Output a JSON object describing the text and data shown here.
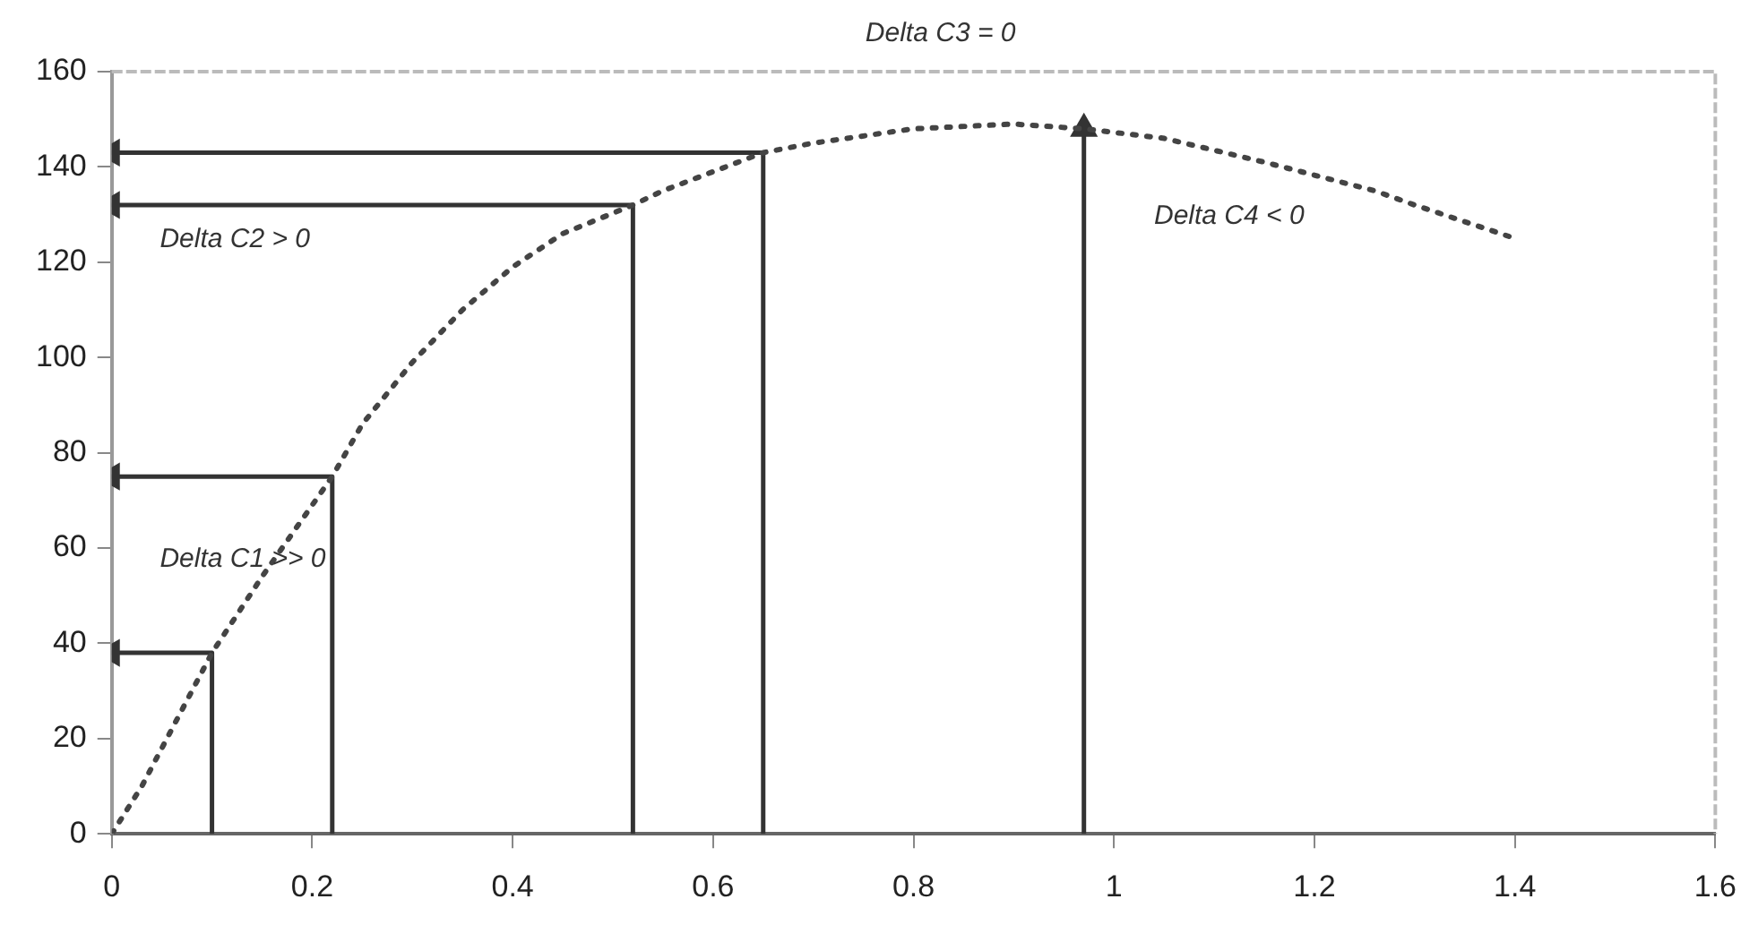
{
  "chart_data": {
    "type": "line",
    "xlim": [
      0,
      1.6
    ],
    "xticks": [
      0,
      0.2,
      0.4,
      0.6,
      0.8,
      1,
      1.2,
      1.4,
      1.6
    ],
    "ylim": [
      0,
      160
    ],
    "yticks": [
      0,
      20,
      40,
      60,
      80,
      100,
      120,
      140,
      160
    ],
    "grid": false,
    "legend": false,
    "series": [
      {
        "color": "#444444",
        "line_style": "dotted",
        "marker": "none",
        "x": [
          0,
          0.03,
          0.1,
          0.15,
          0.22,
          0.25,
          0.3,
          0.35,
          0.4,
          0.45,
          0.52,
          0.55,
          0.6,
          0.65,
          0.7,
          0.8,
          0.9,
          0.97,
          1.05,
          1.15,
          1.26,
          1.3,
          1.4
        ],
        "values": [
          0,
          10,
          38,
          54,
          75,
          86,
          99,
          110,
          119,
          126,
          132,
          135,
          139,
          143,
          145,
          148,
          149,
          148,
          146,
          141,
          135,
          132,
          125
        ]
      },
      {
        "color": "#333333",
        "line_style": "solid",
        "x": [
          0.1,
          0.1,
          0
        ],
        "values": [
          0,
          38,
          38
        ]
      },
      {
        "color": "#333333",
        "line_style": "solid",
        "x": [
          0.22,
          0.22,
          0
        ],
        "values": [
          0,
          75,
          75
        ]
      },
      {
        "color": "#333333",
        "line_style": "solid",
        "x": [
          0.52,
          0.52,
          0
        ],
        "values": [
          0,
          132,
          132
        ]
      },
      {
        "color": "#333333",
        "line_style": "solid",
        "x": [
          0.65,
          0.65,
          0
        ],
        "values": [
          0,
          143,
          143
        ]
      },
      {
        "color": "#333333",
        "line_style": "solid",
        "x": [
          0.97,
          0.97
        ],
        "values": [
          0,
          148
        ]
      }
    ],
    "annotations": [
      "Delta C1 >> 0",
      "Delta C2 > 0",
      "Delta C3 = 0",
      "Delta C4 < 0"
    ]
  }
}
